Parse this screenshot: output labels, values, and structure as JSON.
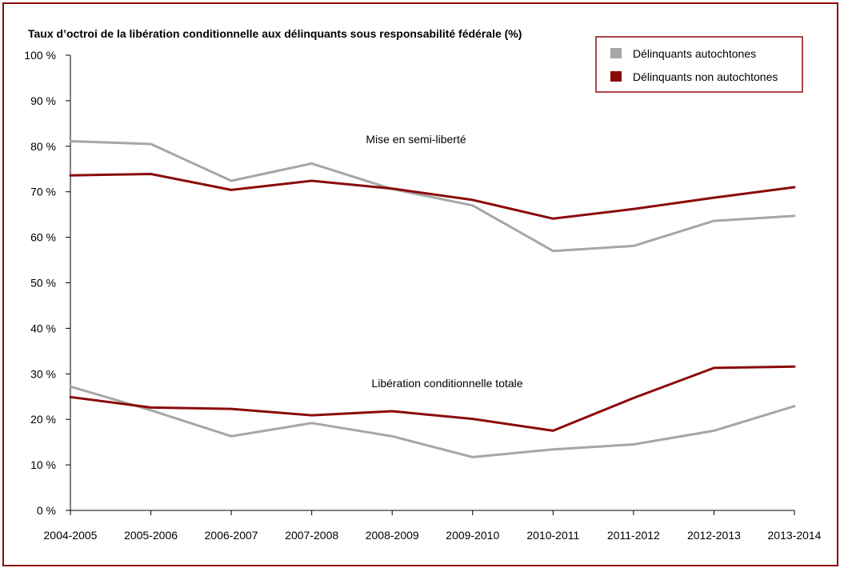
{
  "chart_data": {
    "type": "line",
    "title": "Taux d’octroi de la libération conditionnelle aux délinquants sous responsabilité fédérale (%)",
    "xlabel": "",
    "ylabel": "",
    "categories": [
      "2004-2005",
      "2005-2006",
      "2006-2007",
      "2007-2008",
      "2008-2009",
      "2009-2010",
      "2010-2011",
      "2011-2012",
      "2012-2013",
      "2013-2014"
    ],
    "ylim": [
      0,
      100
    ],
    "yticks": [
      0,
      10,
      20,
      30,
      40,
      50,
      60,
      70,
      80,
      90,
      100
    ],
    "ytick_labels": [
      "0 %",
      "10 %",
      "20 %",
      "30 %",
      "40 %",
      "50 %",
      "60 %",
      "70 %",
      "80 %",
      "90 %",
      "100 %"
    ],
    "grid": false,
    "legend_position": "top-right",
    "legend": [
      {
        "name": "Délinquants autochtones",
        "color": "#a6a6a6"
      },
      {
        "name": "Délinquants non autochtones",
        "color": "#8b0a0a"
      }
    ],
    "groups": [
      {
        "annotation": "Mise en semi-liberté",
        "series": [
          {
            "legend_index": 0,
            "color": "#a6a6a6",
            "values": [
              81.1,
              80.5,
              72.4,
              76.2,
              70.6,
              67.0,
              57.0,
              58.1,
              63.6,
              64.7
            ]
          },
          {
            "legend_index": 1,
            "color": "#8b0a0a",
            "values": [
              73.6,
              73.9,
              70.4,
              72.4,
              70.7,
              68.2,
              64.1,
              66.2,
              68.7,
              71.0
            ]
          }
        ]
      },
      {
        "annotation": "Libération conditionnelle totale",
        "series": [
          {
            "legend_index": 0,
            "color": "#a6a6a6",
            "values": [
              27.2,
              22.0,
              16.3,
              19.2,
              16.3,
              11.7,
              13.4,
              14.5,
              17.5,
              22.9
            ]
          },
          {
            "legend_index": 1,
            "color": "#8b0a0a",
            "values": [
              24.9,
              22.6,
              22.3,
              20.9,
              21.8,
              20.1,
              17.5,
              24.7,
              31.3,
              31.6
            ]
          }
        ]
      }
    ]
  }
}
